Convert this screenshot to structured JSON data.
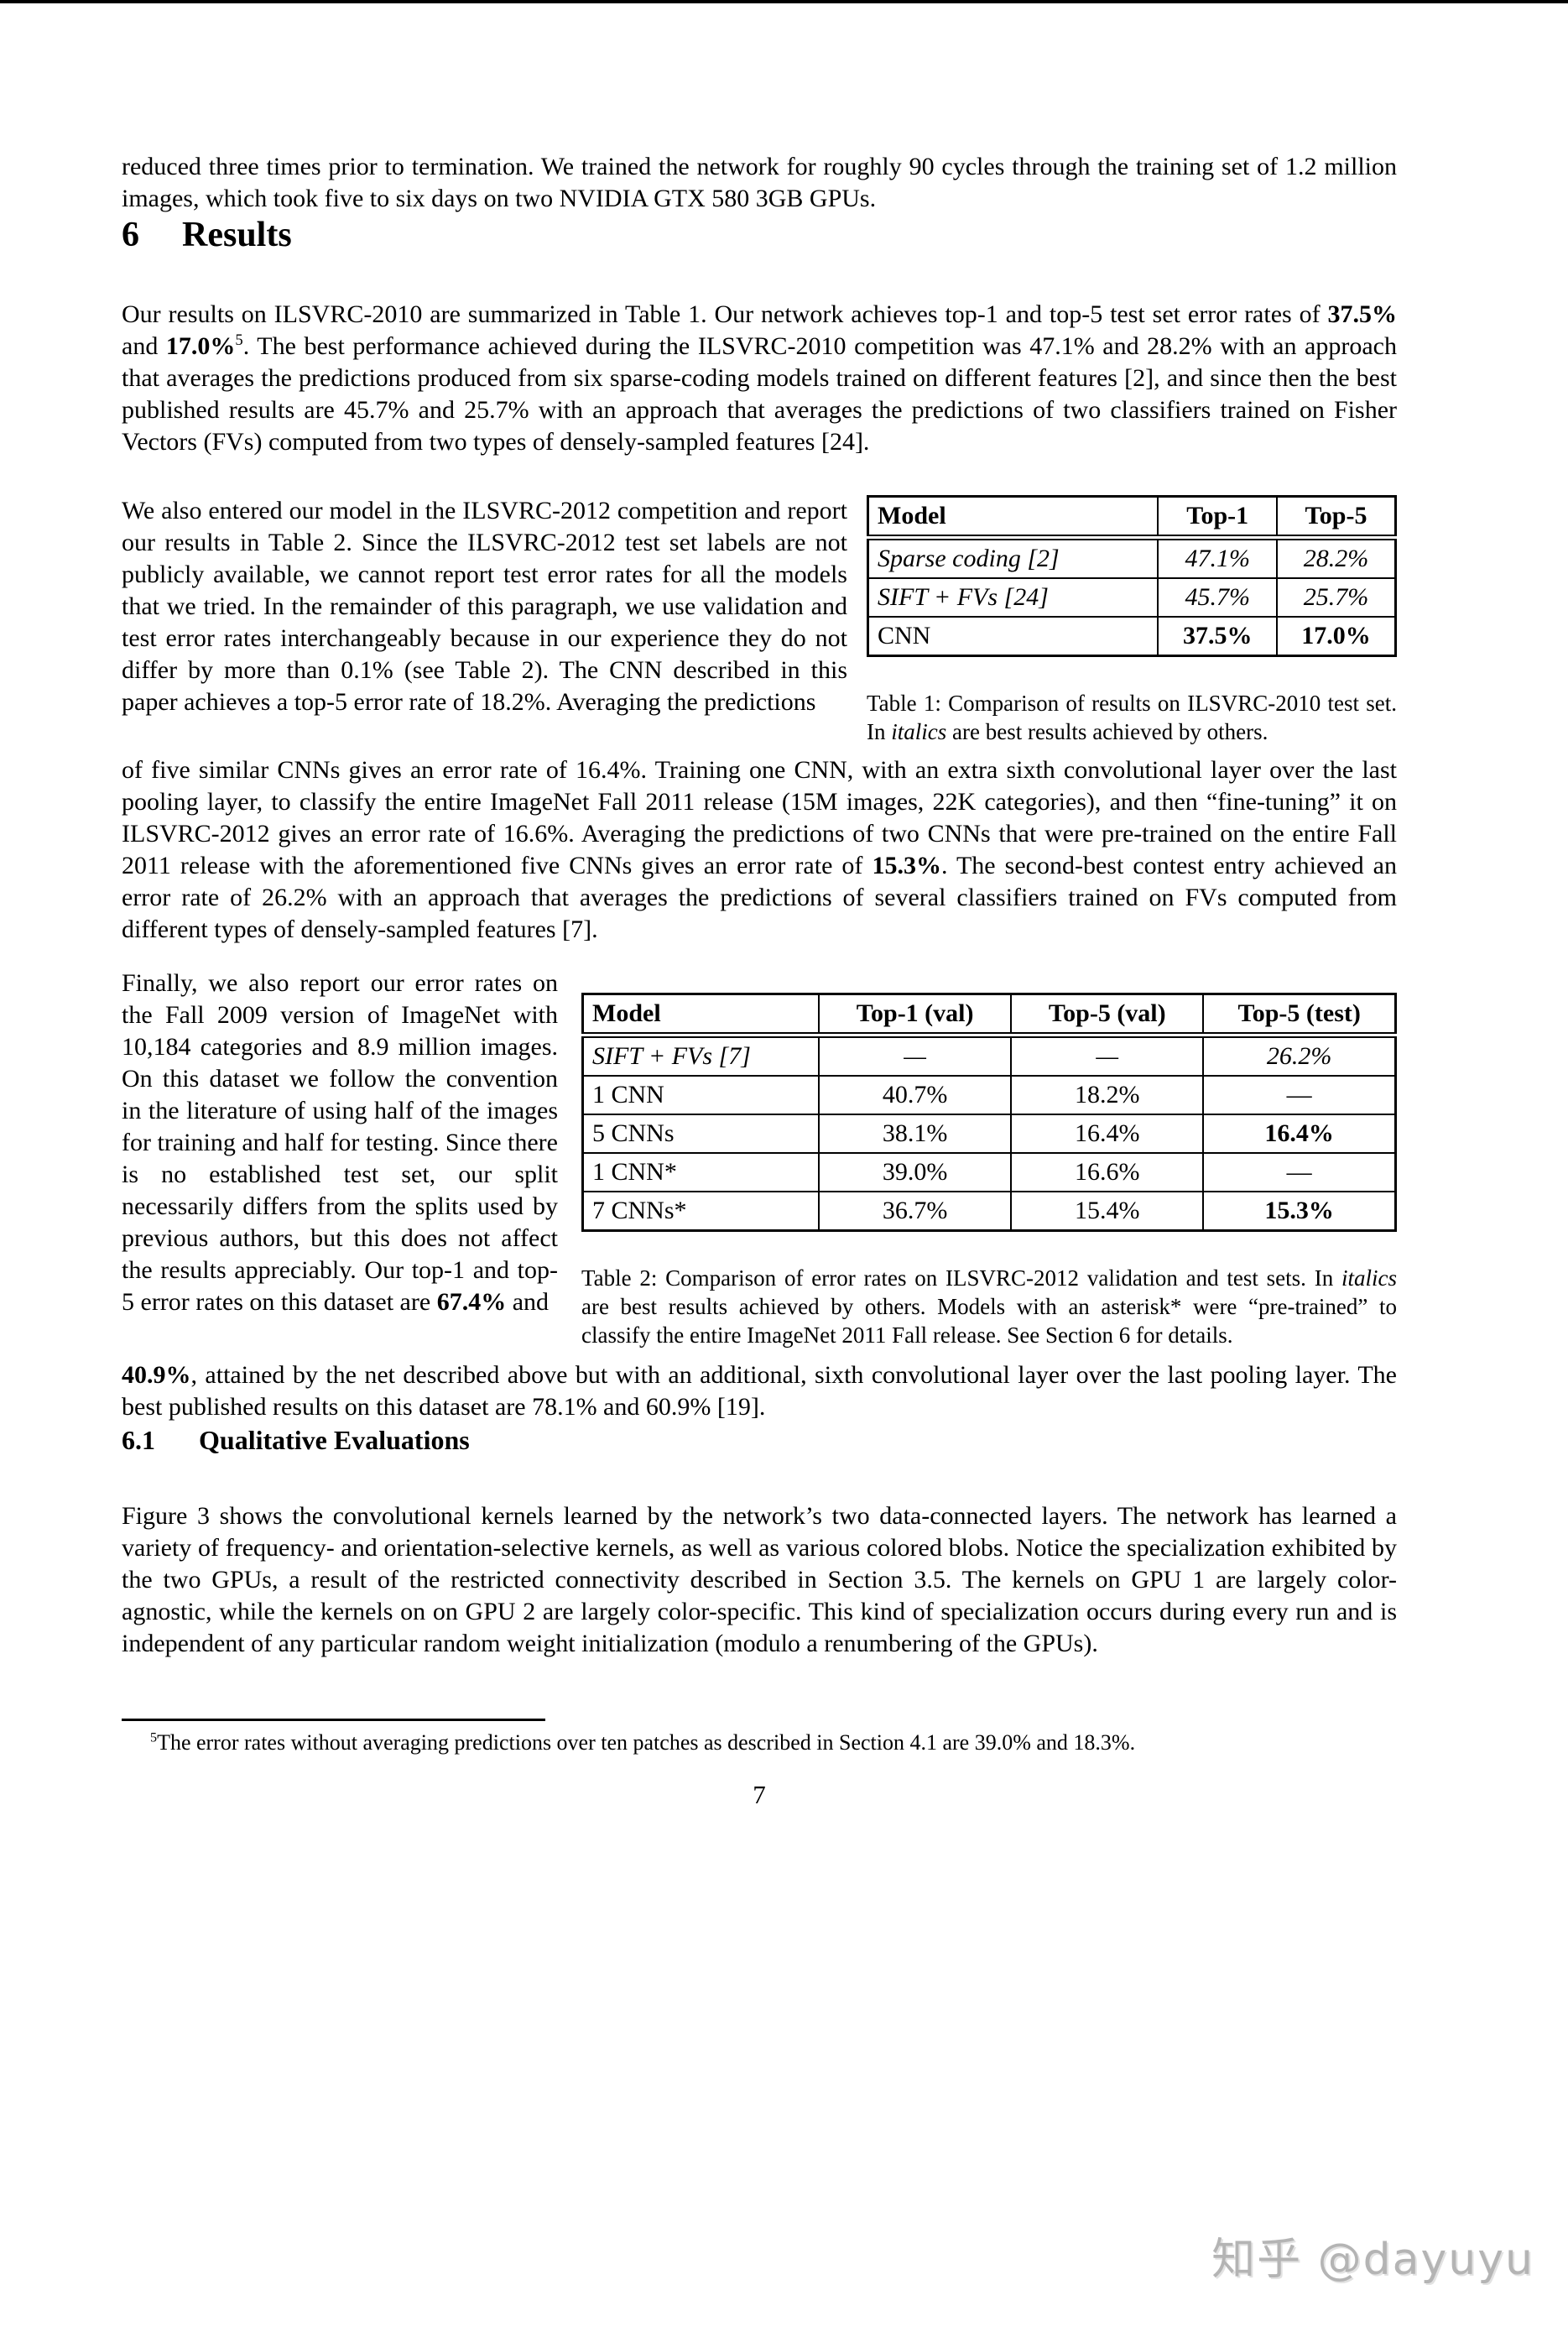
{
  "page": {
    "number": "7",
    "watermark": "知乎 @dayuyu"
  },
  "training_paragraph": "reduced three times prior to termination. We trained the network for roughly 90 cycles through the training set of 1.2 million images, which took five to six days on two NVIDIA GTX 580 3GB GPUs.",
  "section_results": {
    "number": "6",
    "title": "Results"
  },
  "results_paragraph": {
    "t1": "Our results on ILSVRC-2010 are summarized in Table 1. Our network achieves top-1 and top-5 test set error rates of ",
    "b1": "37.5%",
    "t2": " and ",
    "b2": "17.0%",
    "sup": "5",
    "t3": ". The best performance achieved during the ILSVRC-2010 competition was 47.1% and 28.2% with an approach that averages the predictions produced from six sparse-coding models trained on different features [2], and since then the best published results are 45.7% and 25.7% with an approach that averages the predictions of two classifiers trained on Fisher Vectors (FVs) computed from two types of densely-sampled features [24]."
  },
  "ilsvrc2012_paragraph": {
    "left": "We also entered our model in the ILSVRC-2012 competition and report our results in Table 2. Since the ILSVRC-2012 test set labels are not publicly available, we cannot report test error rates for all the models that we tried. In the remainder of this paragraph, we use validation and test error rates interchangeably because in our experience they do not differ by more than 0.1% (see Table 2). The CNN described in this paper achieves a top-5 error rate of 18.2%. Averaging the predictions",
    "cont_t1": "of five similar CNNs gives an error rate of 16.4%. Training one CNN, with an extra sixth convolutional layer over the last pooling layer, to classify the entire ImageNet Fall 2011 release (15M images, 22K categories), and then “fine-tuning” it on ILSVRC-2012 gives an error rate of 16.6%. Averaging the predictions of two CNNs that were pre-trained on the entire Fall 2011 release with the aforementioned five CNNs gives an error rate of ",
    "cont_b1": "15.3%",
    "cont_t2": ". The second-best contest entry achieved an error rate of 26.2% with an approach that averages the predictions of several classifiers trained on FVs computed from different types of densely-sampled features [7]."
  },
  "table1": {
    "headers": [
      "Model",
      "Top-1",
      "Top-5"
    ],
    "rows": [
      {
        "model": "Sparse coding [2]",
        "top1": "47.1%",
        "top5": "28.2%"
      },
      {
        "model": "SIFT + FVs [24]",
        "top1": "45.7%",
        "top5": "25.7%"
      },
      {
        "model": "CNN",
        "top1": "37.5%",
        "top5": "17.0%"
      }
    ],
    "caption": {
      "label": "Table 1: ",
      "t1": "Comparison of results on ILSVRC-2010 test set. In ",
      "italic": "italics",
      "t2": " are best results achieved by others."
    }
  },
  "fall2009_paragraph": {
    "left_t1": "Finally, we also report our error rates on the Fall 2009 version of ImageNet with 10,184 categories and 8.9 million images. On this dataset we follow the convention in the literature of using half of the images for training and half for testing. Since there is no established test set, our split necessarily differs from the splits used by previous authors, but this does not affect the results appreciably. Our top-1 and top-5 error rates on this dataset are ",
    "left_b1": "67.4%",
    "left_t2": " and",
    "cont_b1": "40.9%",
    "cont_t1": ", attained by the net described above but with an additional, sixth convolutional layer over the last pooling layer. The best published results on this dataset are 78.1% and 60.9% [19]."
  },
  "table2": {
    "headers": [
      "Model",
      "Top-1 (val)",
      "Top-5 (val)",
      "Top-5 (test)"
    ],
    "rows": [
      {
        "model": "SIFT + FVs [7]",
        "top1_val": "—",
        "top5_val": "—",
        "top5_test": "26.2%"
      },
      {
        "model": "1 CNN",
        "top1_val": "40.7%",
        "top5_val": "18.2%",
        "top5_test": "—"
      },
      {
        "model": "5 CNNs",
        "top1_val": "38.1%",
        "top5_val": "16.4%",
        "top5_test": "16.4%"
      },
      {
        "model": "1 CNN*",
        "top1_val": "39.0%",
        "top5_val": "16.6%",
        "top5_test": "—"
      },
      {
        "model": "7 CNNs*",
        "top1_val": "36.7%",
        "top5_val": "15.4%",
        "top5_test": "15.3%"
      }
    ],
    "caption": {
      "label": "Table 2: ",
      "t1": "Comparison of error rates on ILSVRC-2012 validation and test sets. In ",
      "italic": "italics",
      "t2": " are best results achieved by others. Models with an asterisk* were “pre-trained” to classify the entire ImageNet 2011 Fall release. See Section 6 for details."
    }
  },
  "section_qualitative": {
    "number": "6.1",
    "title": "Qualitative Evaluations"
  },
  "qualitative_paragraph": "Figure 3 shows the convolutional kernels learned by the network’s two data-connected layers. The network has learned a variety of frequency- and orientation-selective kernels, as well as various colored blobs. Notice the specialization exhibited by the two GPUs, a result of the restricted connectivity described in Section 3.5. The kernels on GPU 1 are largely color-agnostic, while the kernels on on GPU 2 are largely color-specific. This kind of specialization occurs during every run and is independent of any particular random weight initialization (modulo a renumbering of the GPUs).",
  "footnote": {
    "marker": "5",
    "text": "The error rates without averaging predictions over ten patches as described in Section 4.1 are 39.0% and 18.3%."
  }
}
